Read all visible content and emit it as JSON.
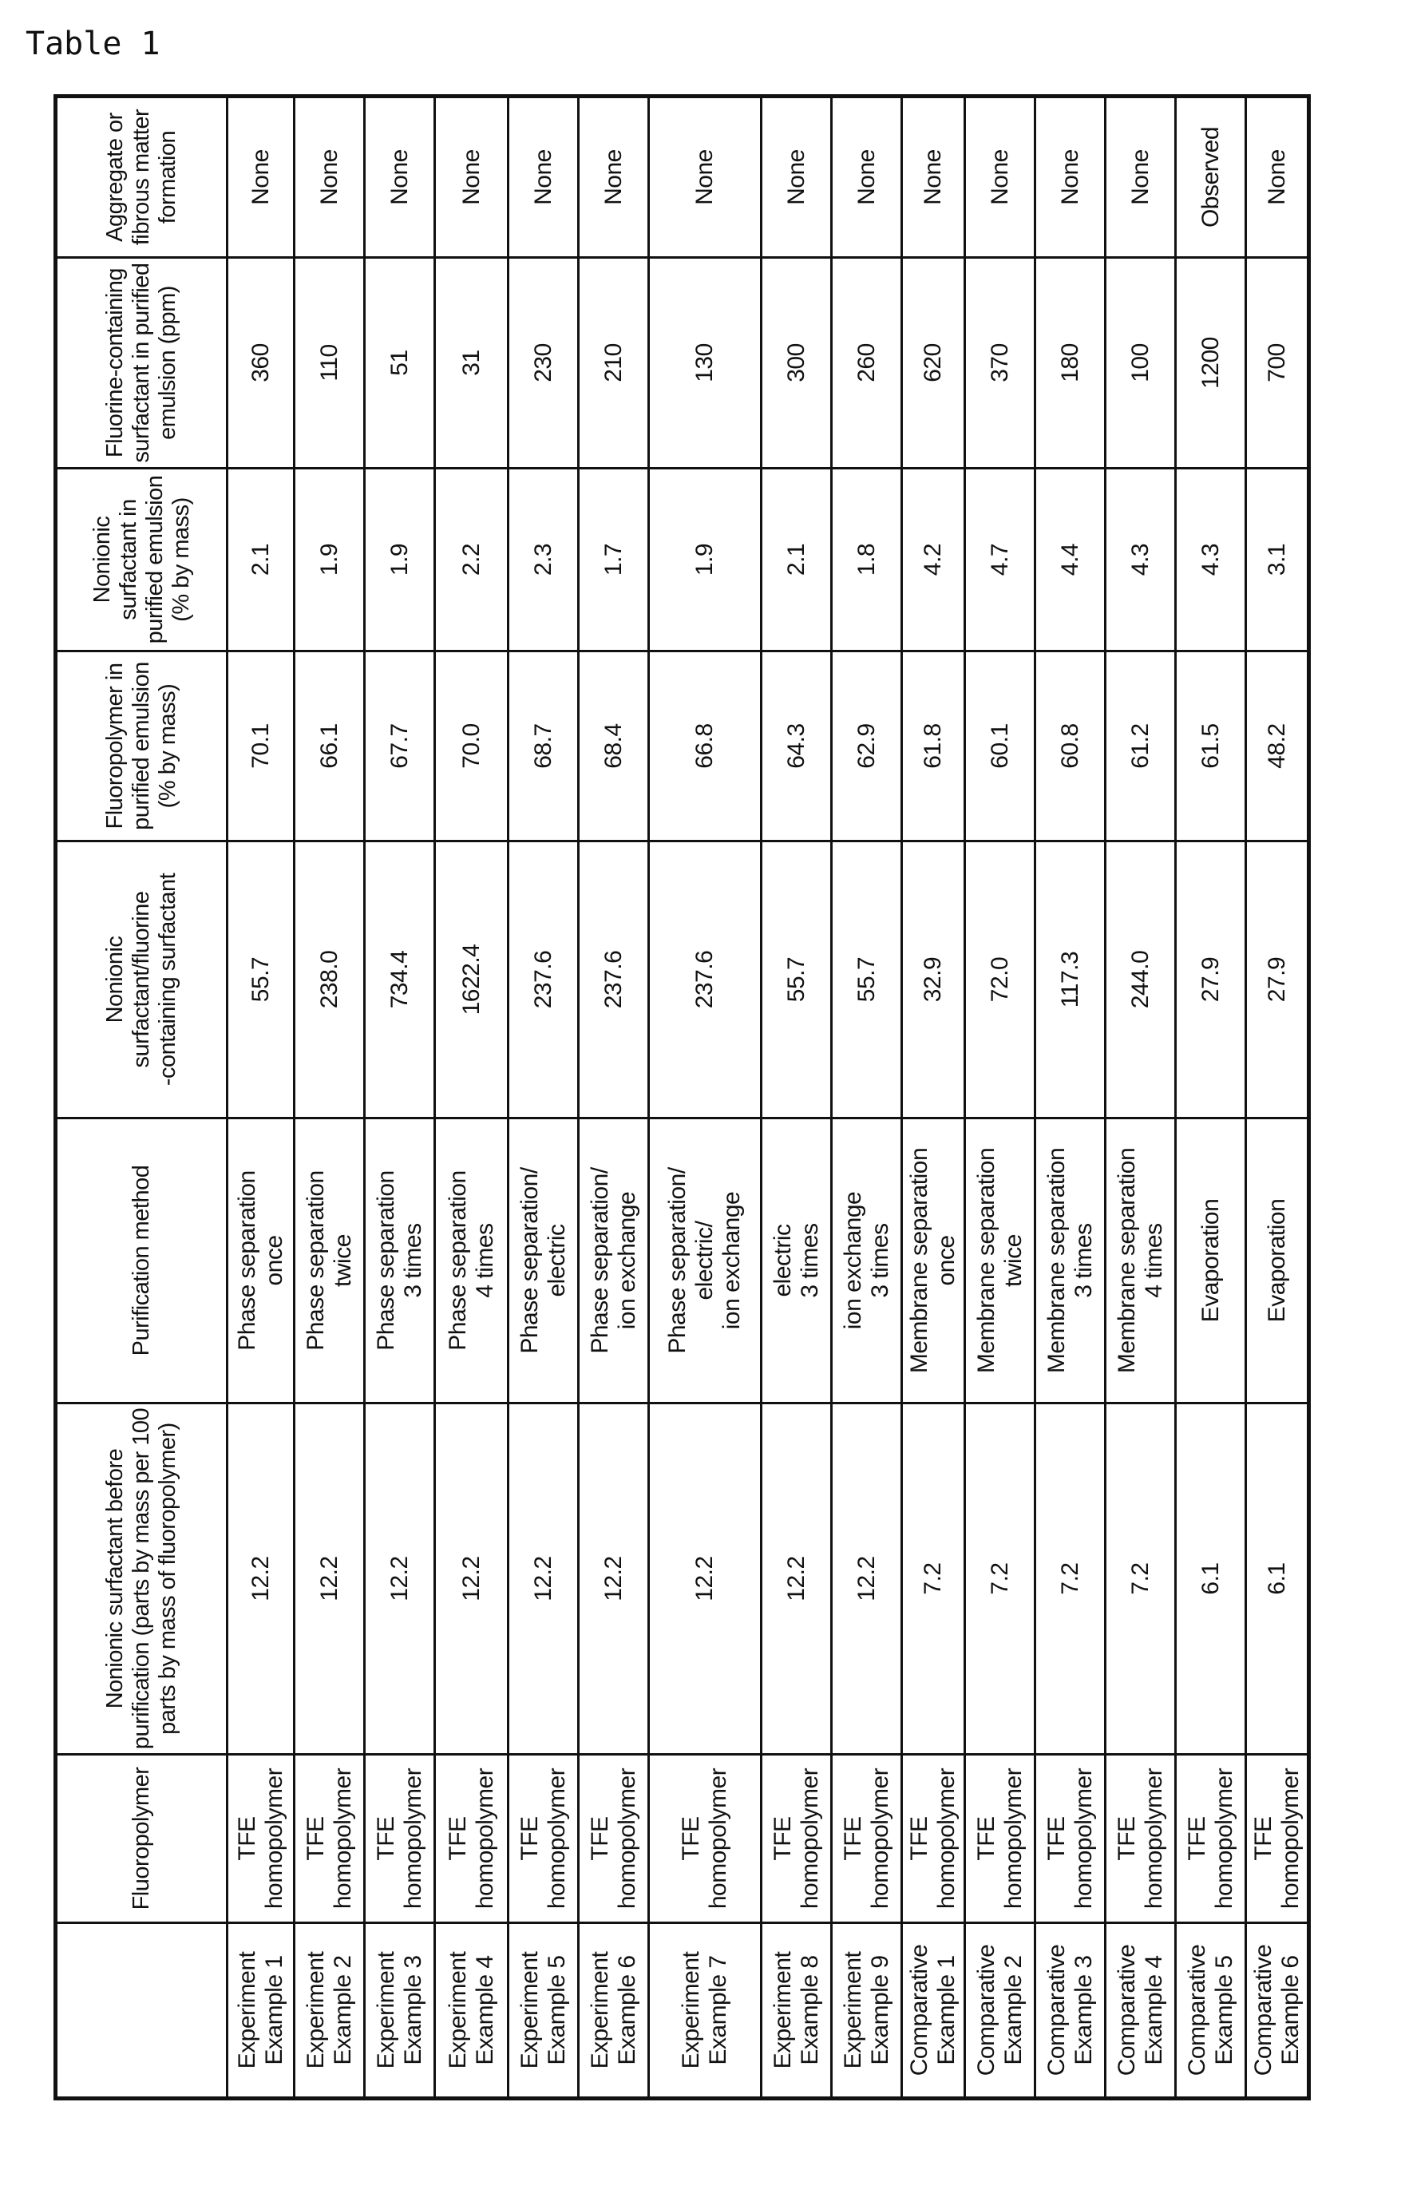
{
  "title": "Table 1",
  "headers": [
    "",
    "Fluoropolymer",
    "Nonionic surfactant before purification (parts by mass per 100 parts by mass of fluoropolymer)",
    "Purification method",
    "Nonionic surfactant/fluorine\n-containing surfactant",
    "Fluoropolymer in purified emulsion (% by mass)",
    "Nonionic surfactant in purified emulsion (% by mass)",
    "Fluorine-containing surfactant in purified emulsion (ppm)",
    "Aggregate or fibrous matter formation"
  ],
  "rows": [
    [
      "Experiment\nExample 1",
      "TFE\nhomopolymer",
      "12.2",
      "Phase separation\nonce",
      "55.7",
      "70.1",
      "2.1",
      "360",
      "None"
    ],
    [
      "Experiment\nExample 2",
      "TFE\nhomopolymer",
      "12.2",
      "Phase separation\ntwice",
      "238.0",
      "66.1",
      "1.9",
      "110",
      "None"
    ],
    [
      "Experiment\nExample 3",
      "TFE\nhomopolymer",
      "12.2",
      "Phase separation\n3 times",
      "734.4",
      "67.7",
      "1.9",
      "51",
      "None"
    ],
    [
      "Experiment\nExample 4",
      "TFE\nhomopolymer",
      "12.2",
      "Phase separation\n4 times",
      "1622.4",
      "70.0",
      "2.2",
      "31",
      "None"
    ],
    [
      "Experiment\nExample 5",
      "TFE\nhomopolymer",
      "12.2",
      "Phase separation/\nelectric",
      "237.6",
      "68.7",
      "2.3",
      "230",
      "None"
    ],
    [
      "Experiment\nExample 6",
      "TFE\nhomopolymer",
      "12.2",
      "Phase separation/\nion exchange",
      "237.6",
      "68.4",
      "1.7",
      "210",
      "None"
    ],
    [
      "Experiment\nExample 7",
      "TFE\nhomopolymer",
      "12.2",
      "Phase separation/\nelectric/\nion exchange",
      "237.6",
      "66.8",
      "1.9",
      "130",
      "None"
    ],
    [
      "Experiment\nExample 8",
      "TFE\nhomopolymer",
      "12.2",
      "electric\n3 times",
      "55.7",
      "64.3",
      "2.1",
      "300",
      "None"
    ],
    [
      "Experiment\nExample 9",
      "TFE\nhomopolymer",
      "12.2",
      "ion exchange\n3 times",
      "55.7",
      "62.9",
      "1.8",
      "260",
      "None"
    ],
    [
      "Comparative\nExample 1",
      "TFE\nhomopolymer",
      "7.2",
      "Membrane separation\nonce",
      "32.9",
      "61.8",
      "4.2",
      "620",
      "None"
    ],
    [
      "Comparative\nExample 2",
      "TFE\nhomopolymer",
      "7.2",
      "Membrane separation\ntwice",
      "72.0",
      "60.1",
      "4.7",
      "370",
      "None"
    ],
    [
      "Comparative\nExample 3",
      "TFE\nhomopolymer",
      "7.2",
      "Membrane separation\n3 times",
      "117.3",
      "60.8",
      "4.4",
      "180",
      "None"
    ],
    [
      "Comparative\nExample 4",
      "TFE\nhomopolymer",
      "7.2",
      "Membrane separation\n4 times",
      "244.0",
      "61.2",
      "4.3",
      "100",
      "None"
    ],
    [
      "Comparative\nExample 5",
      "TFE\nhomopolymer",
      "6.1",
      "Evaporation",
      "27.9",
      "61.5",
      "4.3",
      "1200",
      "Observed"
    ],
    [
      "Comparative\nExample 6",
      "TFE\nhomopolymer",
      "6.1",
      "Evaporation",
      "27.9",
      "48.2",
      "3.1",
      "700",
      "None"
    ]
  ]
}
